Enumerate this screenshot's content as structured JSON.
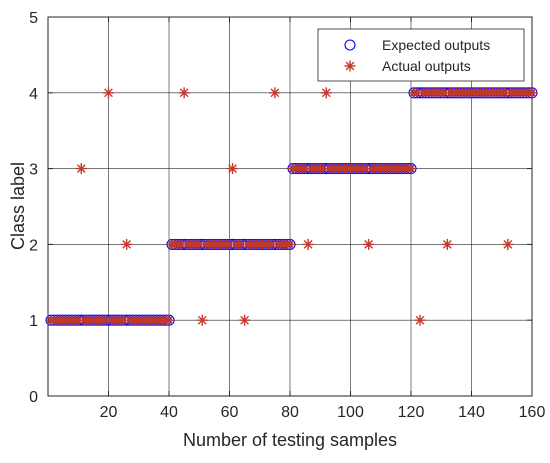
{
  "chart_data": {
    "type": "scatter",
    "xlabel": "Number of testing samples",
    "ylabel": "Class label",
    "xlim": [
      0,
      160
    ],
    "ylim": [
      0,
      5
    ],
    "xticks": [
      20,
      40,
      60,
      80,
      100,
      120,
      140,
      160
    ],
    "yticks": [
      0,
      1,
      2,
      3,
      4,
      5
    ],
    "grid": true,
    "legend_position": "top-right",
    "series": [
      {
        "name": "Expected outputs",
        "marker": "circle",
        "color": "#0000ff",
        "segments": [
          {
            "x_start": 1,
            "x_end": 40,
            "y": 1
          },
          {
            "x_start": 41,
            "x_end": 80,
            "y": 2
          },
          {
            "x_start": 81,
            "x_end": 120,
            "y": 3
          },
          {
            "x_start": 121,
            "x_end": 160,
            "y": 4
          }
        ]
      },
      {
        "name": "Actual outputs",
        "marker": "asterisk",
        "color": "#c0392b",
        "segments": [
          {
            "x_start": 1,
            "x_end": 40,
            "y": 1
          },
          {
            "x_start": 41,
            "x_end": 80,
            "y": 2
          },
          {
            "x_start": 81,
            "x_end": 120,
            "y": 3
          },
          {
            "x_start": 121,
            "x_end": 160,
            "y": 4
          }
        ],
        "misclassified": [
          {
            "x": 11,
            "y": 3
          },
          {
            "x": 20,
            "y": 4
          },
          {
            "x": 26,
            "y": 2
          },
          {
            "x": 45,
            "y": 4
          },
          {
            "x": 51,
            "y": 1
          },
          {
            "x": 61,
            "y": 3
          },
          {
            "x": 65,
            "y": 1
          },
          {
            "x": 75,
            "y": 4
          },
          {
            "x": 86,
            "y": 2
          },
          {
            "x": 92,
            "y": 4
          },
          {
            "x": 106,
            "y": 2
          },
          {
            "x": 123,
            "y": 1
          },
          {
            "x": 132,
            "y": 2
          },
          {
            "x": 152,
            "y": 2
          }
        ]
      }
    ]
  }
}
